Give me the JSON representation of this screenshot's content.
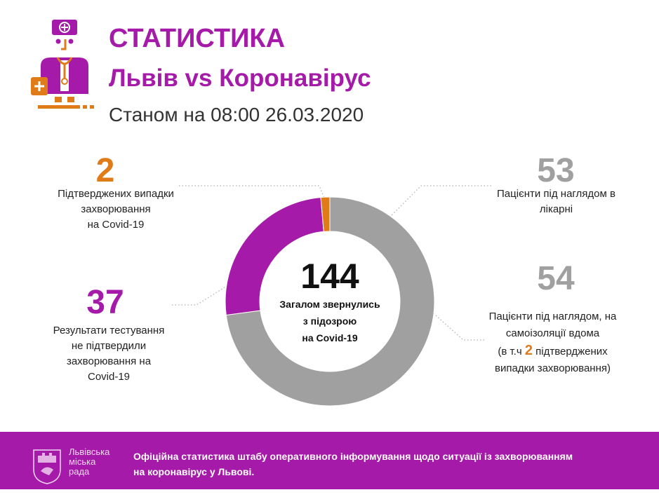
{
  "header": {
    "title": "СТАТИСТИКА",
    "subtitle": "Львів vs Коронавірус",
    "date_line": "Станом на 08:00 26.03.2020"
  },
  "colors": {
    "purple": "#a51aa8",
    "orange": "#e07b1a",
    "gray": "#a0a0a0"
  },
  "stats": {
    "confirmed": {
      "value": "2",
      "label_lines": [
        "Підтверджених випадки",
        "захворювання",
        "на Covid-19"
      ]
    },
    "negative": {
      "value": "37",
      "label_lines": [
        "Результати тестування",
        "не підтвердили",
        "захворювання на",
        "Covid-19"
      ]
    },
    "hospital": {
      "value": "53",
      "label_lines": [
        "Пацієнти під наглядом в",
        "лікарні"
      ]
    },
    "home": {
      "value": "54",
      "label_lines": [
        "Пацієнти під наглядом, на",
        "самоізоляції вдома"
      ],
      "note_prefix": "(в т.ч ",
      "note_number": "2",
      "note_suffix": " підтверджених",
      "note_line2": "випадки захворювання)"
    },
    "total": {
      "value": "144",
      "label_lines": [
        "Загалом звернулись",
        "з підозрою",
        "на Covid-19"
      ]
    }
  },
  "chart_data": {
    "type": "pie",
    "donut": true,
    "total": 144,
    "slices": [
      {
        "value": 105,
        "color": "#a0a0a0"
      },
      {
        "value": 37,
        "color": "#a51aa8"
      },
      {
        "value": 2,
        "color": "#e07b1a"
      }
    ]
  },
  "footer": {
    "council_lines": [
      "Львівська",
      "міська",
      "рада"
    ],
    "text": "Офіційна статистика штабу оперативного інформування щодо ситуації із захворюванням на коронавірус у Львові."
  }
}
